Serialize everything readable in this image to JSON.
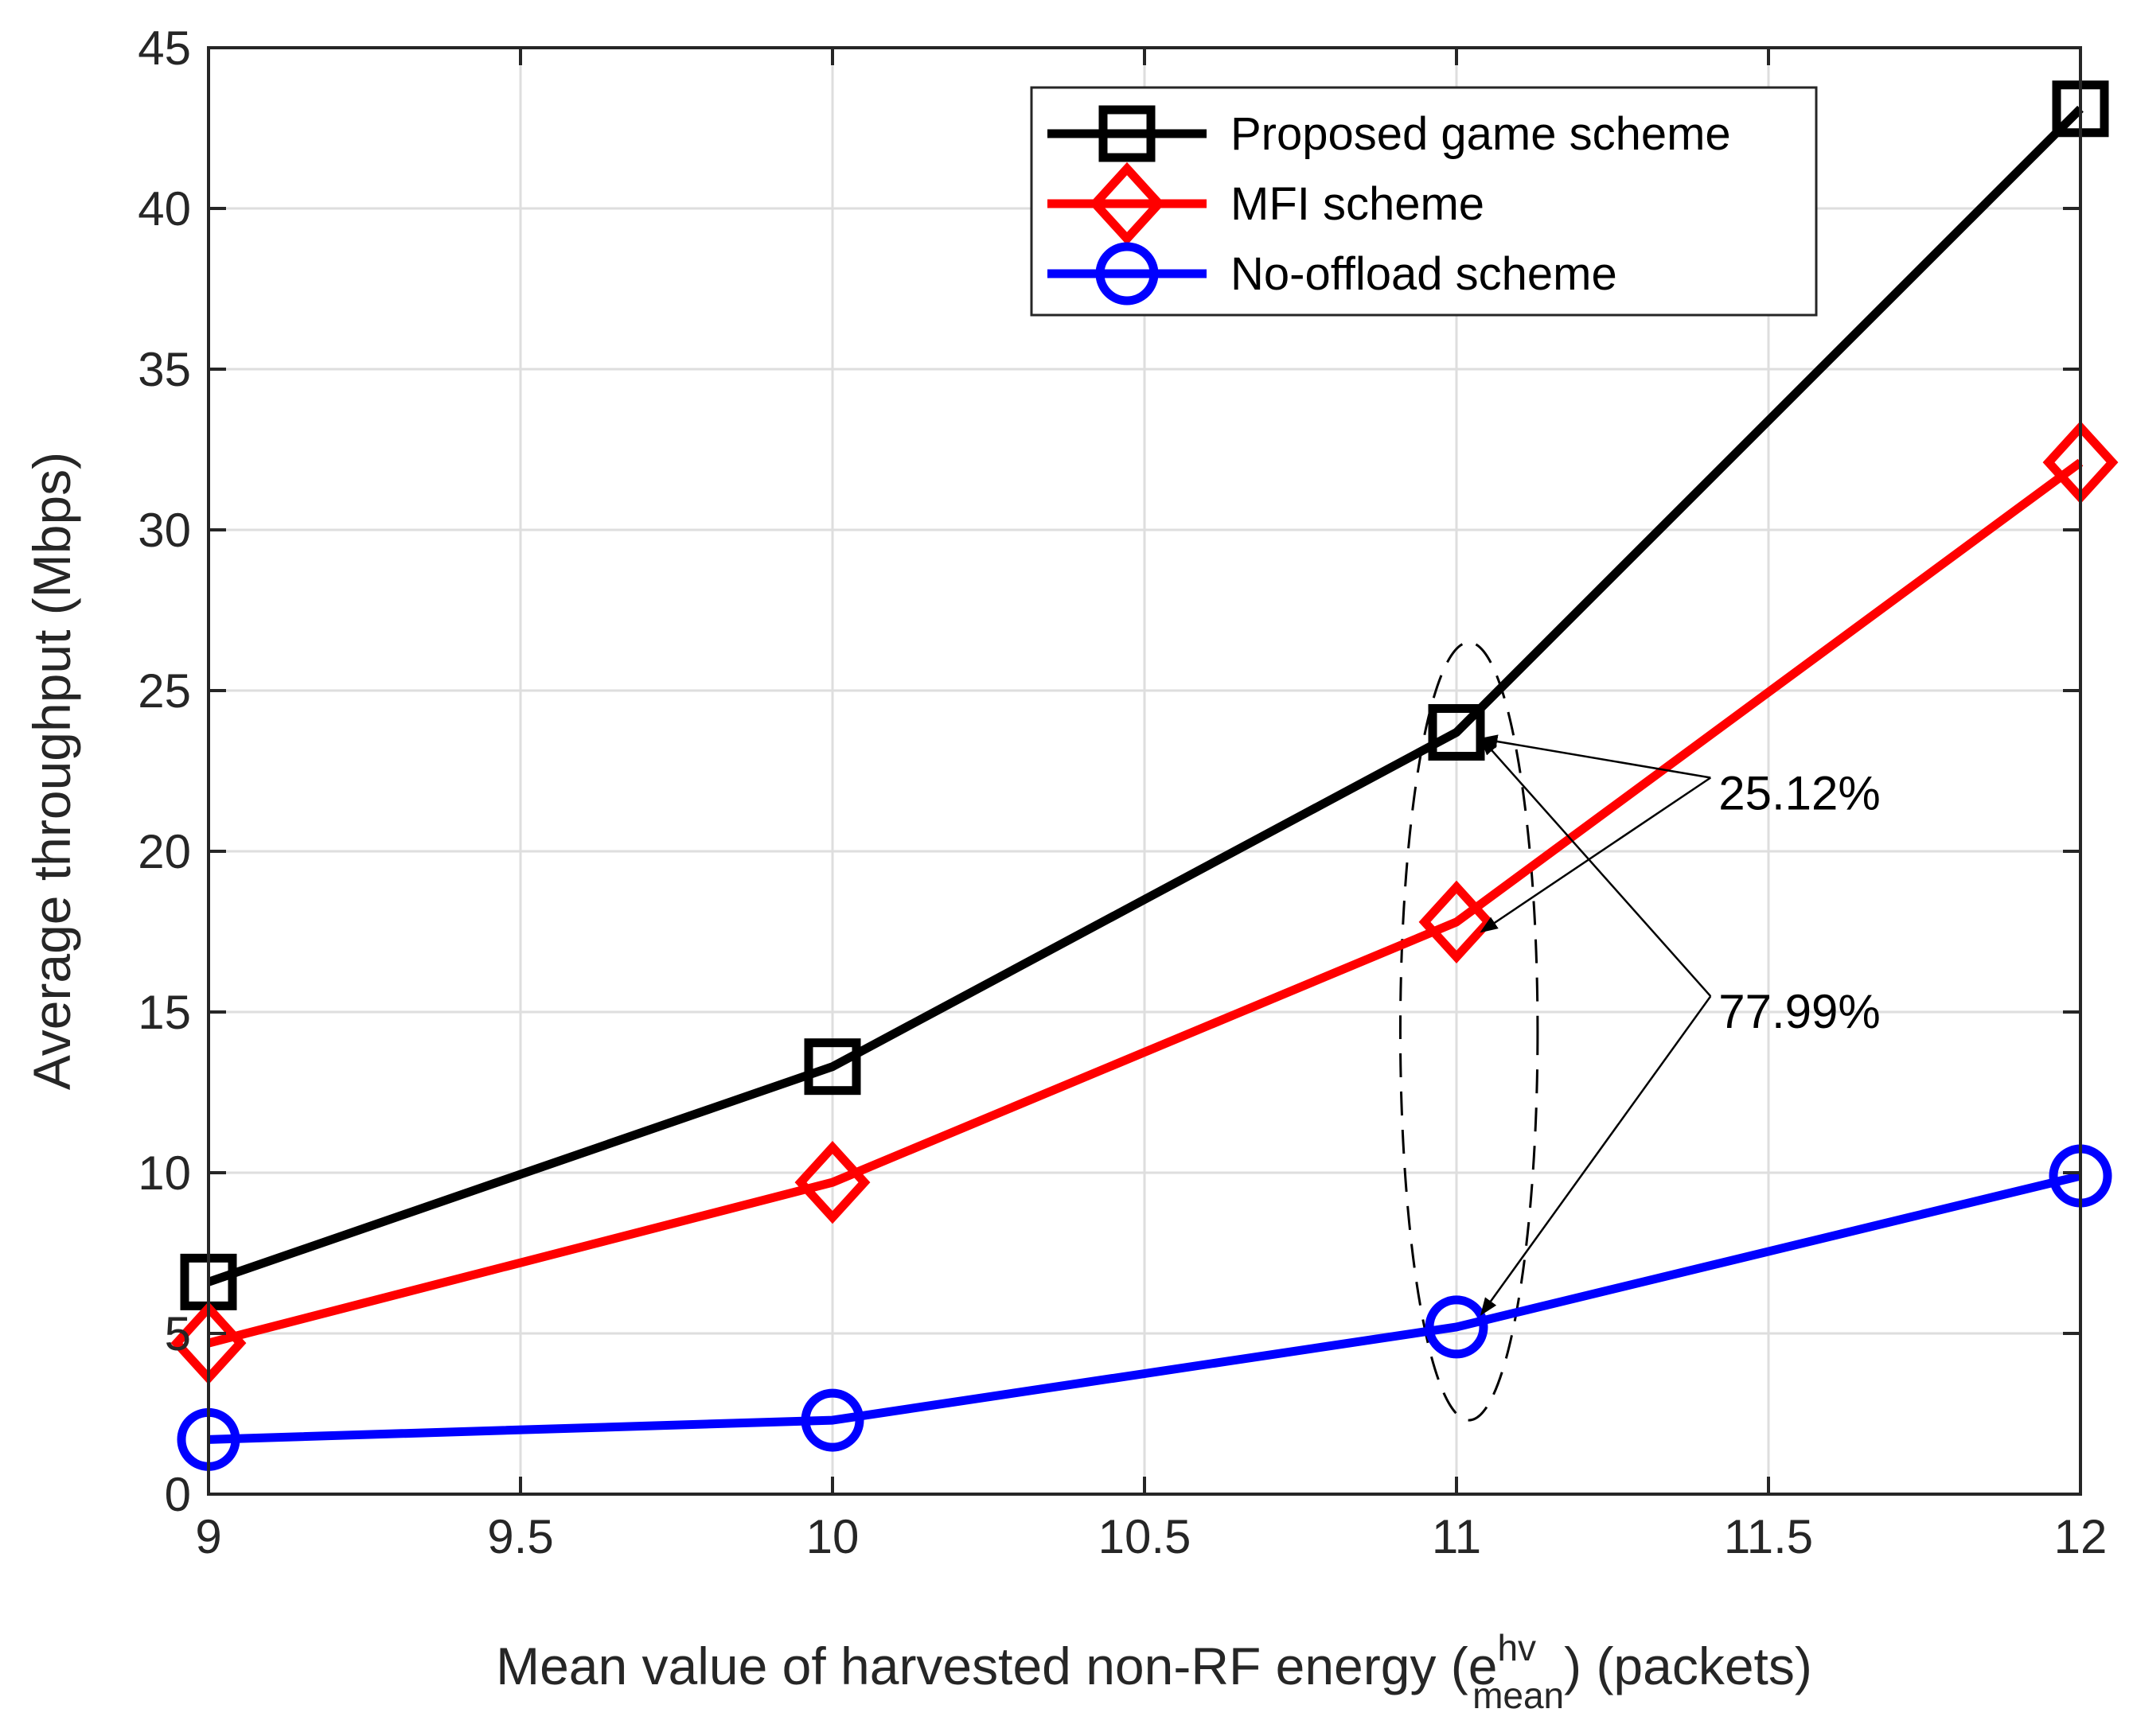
{
  "chart_data": {
    "type": "line",
    "title": "",
    "xlabel": "Mean value of harvested non-RF energy (e",
    "xlabel_sup": "hv",
    "xlabel_sub": "mean",
    "xlabel_tail": ") (packets)",
    "ylabel": "Average throughput (Mbps)",
    "xlim": [
      9,
      12
    ],
    "ylim": [
      0,
      45
    ],
    "xticks": [
      9,
      9.5,
      10,
      10.5,
      11,
      11.5,
      12
    ],
    "xtick_labels": [
      "9",
      "9.5",
      "10",
      "10.5",
      "11",
      "11.5",
      "12"
    ],
    "yticks": [
      0,
      5,
      10,
      15,
      20,
      25,
      30,
      35,
      40,
      45
    ],
    "ytick_labels": [
      "0",
      "5",
      "10",
      "15",
      "20",
      "25",
      "30",
      "35",
      "40",
      "45"
    ],
    "grid": true,
    "legend_position": "top-right",
    "x": [
      9,
      10,
      11,
      12
    ],
    "series": [
      {
        "name": "Proposed game scheme",
        "color": "#000000",
        "marker": "square",
        "values": [
          6.6,
          13.3,
          23.7,
          43.1
        ]
      },
      {
        "name": "MFI scheme",
        "color": "#ff0000",
        "marker": "diamond",
        "values": [
          4.7,
          9.7,
          17.8,
          32.1
        ]
      },
      {
        "name": "No-offload scheme",
        "color": "#0000ff",
        "marker": "circle",
        "values": [
          1.7,
          2.3,
          5.2,
          9.9
        ]
      }
    ],
    "annotations": [
      {
        "text": "25.12%",
        "x": 11.42,
        "y": 21.3,
        "arrows_to": [
          [
            11.04,
            23.5
          ],
          [
            11.04,
            17.5
          ]
        ]
      },
      {
        "text": "77.99%",
        "x": 11.42,
        "y": 14.5,
        "arrows_to": [
          [
            11.04,
            23.5
          ],
          [
            11.04,
            5.6
          ]
        ]
      }
    ],
    "ellipse": {
      "center_x": 11.02,
      "center_y": 14.4,
      "half_width_x": 0.11,
      "half_height_y": 12.1,
      "style": "dashed"
    }
  }
}
